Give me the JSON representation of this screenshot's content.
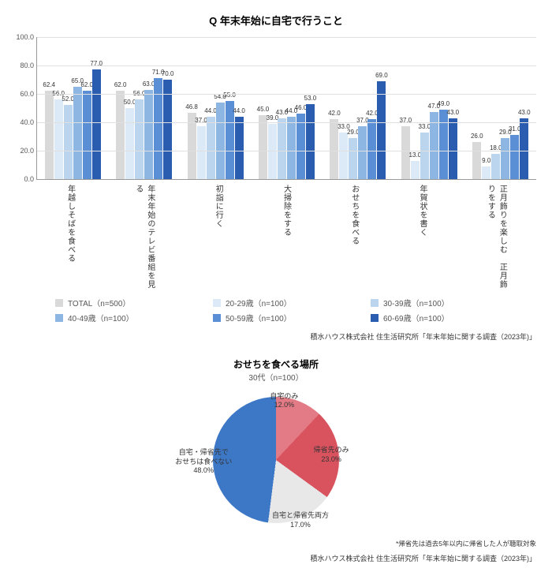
{
  "bar_chart": {
    "title": "Q 年末年始に自宅で行うこと",
    "ylim": [
      0,
      100
    ],
    "ytick_step": 20,
    "grid_color": "#e0e0e0",
    "background": "#ffffff",
    "categories": [
      "年越しそばを食べる",
      "年末年始のテレビ番組を見る",
      "初詣に行く",
      "大掃除をする",
      "おせちを食べる",
      "年賀状を書く",
      "正月飾りを楽しむ　正月飾りをする"
    ],
    "series": [
      {
        "name": "TOTAL（n=500）",
        "color": "#d9d9d9"
      },
      {
        "name": "20-29歳（n=100）",
        "color": "#dce9f7"
      },
      {
        "name": "30-39歳（n=100）",
        "color": "#bcd5ee"
      },
      {
        "name": "40-49歳（n=100）",
        "color": "#8db6e2"
      },
      {
        "name": "50-59歳（n=100）",
        "color": "#5a8fd6"
      },
      {
        "name": "60-69歳（n=100）",
        "color": "#2a5db0"
      }
    ],
    "data": [
      [
        62.4,
        56.0,
        52.0,
        65.0,
        62.0,
        77.0
      ],
      [
        62.0,
        50.0,
        56.0,
        63.0,
        71.0,
        70.0
      ],
      [
        46.8,
        37.0,
        44.0,
        54.0,
        55.0,
        44.0
      ],
      [
        45.0,
        39.0,
        43.0,
        44.0,
        46.0,
        53.0
      ],
      [
        42.0,
        33.0,
        29.0,
        37.0,
        42.0,
        69.0
      ],
      [
        37.0,
        13.0,
        33.0,
        47.0,
        49.0,
        43.0
      ],
      [
        26.0,
        9.0,
        18.0,
        29.0,
        31.0,
        43.0
      ]
    ],
    "source": "積水ハウス株式会社 住生活研究所「年末年始に関する調査（2023年)」"
  },
  "pie_chart": {
    "title": "おせちを食べる場所",
    "subtitle": "30代（n=100）",
    "slices": [
      {
        "label": "自宅のみ",
        "pct": 12.0,
        "color": "#e27b85"
      },
      {
        "label": "帰省先のみ",
        "pct": 23.0,
        "color": "#d9535f"
      },
      {
        "label": "自宅と帰省先両方",
        "pct": 17.0,
        "color": "#e8e8e8"
      },
      {
        "label": "自宅・帰省先でおせちは食べない",
        "pct": 48.0,
        "color": "#3d78c7"
      }
    ],
    "footnote": "*帰省先は過去5年以内に帰省した人が聴取対象",
    "source": "積水ハウス株式会社 住生活研究所「年末年始に関する調査（2023年)」"
  }
}
